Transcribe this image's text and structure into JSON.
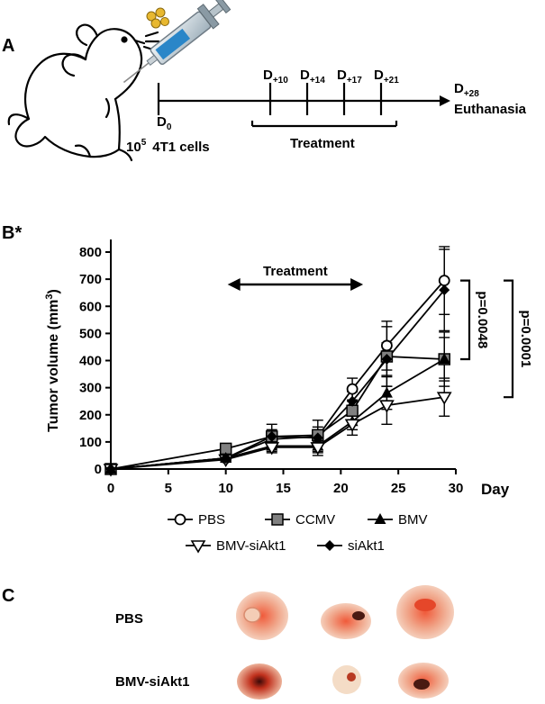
{
  "panels": {
    "a": "A",
    "b": "B*",
    "c": "C"
  },
  "timeline": {
    "d0": {
      "main": "D",
      "sub": "0"
    },
    "days": [
      {
        "main": "D",
        "sub": "+10"
      },
      {
        "main": "D",
        "sub": "+14"
      },
      {
        "main": "D",
        "sub": "+17"
      },
      {
        "main": "D",
        "sub": "+21"
      }
    ],
    "end_day": {
      "main": "D",
      "sub": "+28"
    },
    "end_label": "Euthanasia",
    "cells_base": "10",
    "cells_exp": "5",
    "cells_label": "4T1 cells",
    "treatment_label": "Treatment"
  },
  "chart_data": {
    "type": "line",
    "title": "",
    "xlabel": "Day",
    "ylabel": "Tumor volume (mm",
    "ylabel_sup": "3",
    "ylabel_end": ")",
    "x": [
      0,
      10,
      14,
      18,
      21,
      24,
      29
    ],
    "xlim": [
      0,
      30
    ],
    "ylim": [
      0,
      800
    ],
    "xticks": [
      "0",
      "5",
      "10",
      "15",
      "20",
      "25",
      "30"
    ],
    "yticks": [
      "0",
      "100",
      "200",
      "300",
      "400",
      "500",
      "600",
      "700",
      "800"
    ],
    "treatment_label": "Treatment",
    "treatment_range": [
      10,
      21
    ],
    "series": [
      {
        "name": "PBS",
        "marker": "circle-open",
        "values": [
          0,
          40,
          110,
          120,
          295,
          455,
          695
        ],
        "errors": [
          0,
          10,
          25,
          25,
          40,
          90,
          125
        ]
      },
      {
        "name": "CCMV",
        "marker": "square-gray",
        "values": [
          0,
          75,
          120,
          125,
          215,
          415,
          405
        ],
        "errors": [
          0,
          10,
          25,
          30,
          35,
          110,
          100
        ]
      },
      {
        "name": "BMV",
        "marker": "triangle-up",
        "values": [
          0,
          40,
          85,
          85,
          175,
          280,
          405
        ],
        "errors": [
          0,
          8,
          20,
          20,
          30,
          60,
          80
        ]
      },
      {
        "name": "BMV-siAkt1",
        "marker": "triangle-down-open",
        "values": [
          0,
          35,
          80,
          80,
          165,
          235,
          265
        ],
        "errors": [
          0,
          8,
          20,
          20,
          40,
          70,
          70
        ]
      },
      {
        "name": "siAkt1",
        "marker": "diamond",
        "values": [
          0,
          40,
          120,
          115,
          250,
          405,
          660
        ],
        "errors": [
          0,
          10,
          45,
          65,
          35,
          60,
          150
        ]
      }
    ],
    "significance": [
      {
        "p": "p=0.0048",
        "between": [
          "PBS",
          "BMV"
        ]
      },
      {
        "p": "p=0.0001",
        "between": [
          "PBS",
          "BMV-siAkt1"
        ]
      }
    ]
  },
  "photos": {
    "rows": [
      {
        "label": "PBS",
        "count": 3
      },
      {
        "label": "BMV-siAkt1",
        "count": 3
      }
    ]
  },
  "colors": {
    "ink": "#000000",
    "gray_marker": "#808080",
    "tumor": "#e89a7a"
  }
}
